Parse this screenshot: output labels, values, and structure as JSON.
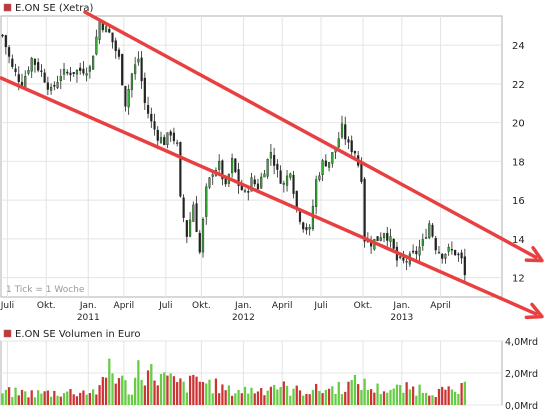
{
  "chart_data": [
    {
      "type": "candlestick",
      "title": "E.ON SE (Xetra)",
      "legend_color": "#cc3333",
      "x_tick_labels": [
        "Juli",
        "Okt.",
        "Jan.",
        "April",
        "Juli",
        "Okt.",
        "Jan.",
        "April",
        "Juli",
        "Okt.",
        "Jan.",
        "April"
      ],
      "x_year_labels": [
        "2011",
        "2012",
        "2013"
      ],
      "y_tick_labels": [
        "12",
        "14",
        "16",
        "18",
        "20",
        "22",
        "24"
      ],
      "y_ticks": [
        12,
        14,
        16,
        18,
        20,
        22,
        24
      ],
      "ylim": [
        11,
        25.5
      ],
      "x_range_weeks": [
        0,
        155
      ],
      "grid": true,
      "annotation": "1 Tick = 1 Woche",
      "up_color": "#33aa33",
      "down_color": "#222222",
      "close_anchors": [
        [
          0,
          24.5
        ],
        [
          3,
          22.8
        ],
        [
          6,
          22.0
        ],
        [
          9,
          23.3
        ],
        [
          12,
          22.6
        ],
        [
          15,
          21.6
        ],
        [
          18,
          22.5
        ],
        [
          21,
          22.6
        ],
        [
          24,
          22.7
        ],
        [
          27,
          22.8
        ],
        [
          30,
          25.2
        ],
        [
          33,
          24.6
        ],
        [
          36,
          23.3
        ],
        [
          38,
          21.0
        ],
        [
          40,
          22.5
        ],
        [
          42,
          23.3
        ],
        [
          44,
          21.0
        ],
        [
          46,
          20.0
        ],
        [
          48,
          19.3
        ],
        [
          50,
          19.0
        ],
        [
          52,
          19.5
        ],
        [
          54,
          18.8
        ],
        [
          55,
          16.0
        ],
        [
          57,
          14.2
        ],
        [
          59,
          15.8
        ],
        [
          61,
          13.3
        ],
        [
          63,
          16.5
        ],
        [
          65,
          17.5
        ],
        [
          67,
          17.8
        ],
        [
          69,
          16.6
        ],
        [
          71,
          18.0
        ],
        [
          73,
          16.8
        ],
        [
          75,
          16.3
        ],
        [
          77,
          17.0
        ],
        [
          79,
          16.7
        ],
        [
          81,
          17.6
        ],
        [
          83,
          18.5
        ],
        [
          85,
          17.4
        ],
        [
          87,
          16.8
        ],
        [
          89,
          17.6
        ],
        [
          91,
          15.5
        ],
        [
          93,
          14.7
        ],
        [
          95,
          14.4
        ],
        [
          97,
          17.0
        ],
        [
          99,
          17.9
        ],
        [
          101,
          18.0
        ],
        [
          103,
          18.7
        ],
        [
          105,
          19.7
        ],
        [
          107,
          18.8
        ],
        [
          109,
          18.5
        ],
        [
          111,
          17.2
        ],
        [
          112,
          14.0
        ],
        [
          114,
          13.8
        ],
        [
          116,
          14.0
        ],
        [
          118,
          14.4
        ],
        [
          120,
          13.9
        ],
        [
          122,
          12.9
        ],
        [
          124,
          12.8
        ],
        [
          126,
          13.0
        ],
        [
          128,
          13.3
        ],
        [
          130,
          13.8
        ],
        [
          132,
          14.8
        ],
        [
          134,
          13.6
        ],
        [
          136,
          13.2
        ],
        [
          138,
          13.4
        ],
        [
          140,
          13.3
        ],
        [
          142,
          12.9
        ],
        [
          143,
          12.1
        ]
      ],
      "channel_lines": [
        {
          "name": "Oberer Trendkanal",
          "color": "#e84040",
          "from": [
            26,
            25.7
          ],
          "to": [
            155,
            14.0
          ]
        },
        {
          "name": "Unterer Trendkanal",
          "color": "#e84040",
          "from": [
            0,
            22.3
          ],
          "to": [
            155,
            10.9
          ]
        }
      ]
    },
    {
      "type": "bar",
      "title": "E.ON SE Volumen in Euro",
      "legend_color": "#cc3333",
      "y_tick_labels": [
        "0,0Mrd",
        "2,0Mrd",
        "4,0Mrd"
      ],
      "y_ticks": [
        0,
        2,
        4
      ],
      "ylim": [
        0,
        4.0
      ],
      "unit": "Mrd",
      "up_color": "#66cc44",
      "down_color": "#cc3333",
      "volume_anchors": [
        [
          0,
          1.0
        ],
        [
          10,
          0.9
        ],
        [
          30,
          1.1
        ],
        [
          33,
          2.9
        ],
        [
          40,
          1.0
        ],
        [
          42,
          2.8
        ],
        [
          55,
          1.6
        ],
        [
          57,
          1.5
        ],
        [
          60,
          2.0
        ],
        [
          70,
          1.1
        ],
        [
          80,
          1.2
        ],
        [
          84,
          1.6
        ],
        [
          90,
          1.1
        ],
        [
          100,
          1.2
        ],
        [
          106,
          1.5
        ],
        [
          111,
          1.8
        ],
        [
          113,
          1.3
        ],
        [
          120,
          1.2
        ],
        [
          130,
          1.3
        ],
        [
          133,
          1.1
        ],
        [
          140,
          1.0
        ],
        [
          143,
          1.3
        ]
      ]
    }
  ]
}
